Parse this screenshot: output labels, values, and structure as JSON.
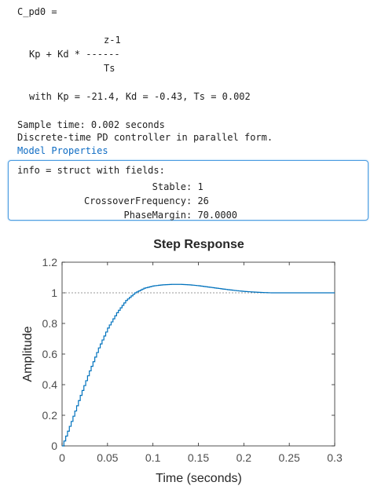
{
  "output": {
    "var_line": "C_pd0 =",
    "formula_num": "z-1",
    "formula_expr": "Kp + Kd * ------",
    "formula_den": "Ts",
    "params": "with Kp = -21.4, Kd = -0.43, Ts = 0.002",
    "sample_time": "Sample time: 0.002 seconds",
    "description": "Discrete-time PD controller in parallel form.",
    "model_link": "Model Properties"
  },
  "info": {
    "header": "info = struct with fields:",
    "fields": [
      {
        "name": "Stable",
        "value": "1"
      },
      {
        "name": "CrossoverFrequency",
        "value": "26"
      },
      {
        "name": "PhaseMargin",
        "value": "70.0000"
      }
    ]
  },
  "chart_data": {
    "type": "line",
    "title": "Step Response",
    "xlabel": "Time (seconds)",
    "ylabel": "Amplitude",
    "xlim": [
      0,
      0.3
    ],
    "ylim": [
      0,
      1.2
    ],
    "x_ticks": [
      "0",
      "0.05",
      "0.1",
      "0.15",
      "0.2",
      "0.25",
      "0.3"
    ],
    "y_ticks": [
      "0",
      "0.2",
      "0.4",
      "0.6",
      "0.8",
      "1",
      "1.2"
    ],
    "reference_line": 1,
    "grid": false,
    "series": [
      {
        "style": "stairs",
        "color": "#0072bd",
        "x": [
          0,
          0.01,
          0.02,
          0.03,
          0.04,
          0.05,
          0.06,
          0.07,
          0.08,
          0.09,
          0.1,
          0.11,
          0.12,
          0.13,
          0.14,
          0.15,
          0.16,
          0.17,
          0.18,
          0.19,
          0.2,
          0.21,
          0.22,
          0.23,
          0.24,
          0.25,
          0.26,
          0.27,
          0.28,
          0.29,
          0.3
        ],
        "y": [
          0,
          0.16,
          0.33,
          0.49,
          0.64,
          0.77,
          0.87,
          0.95,
          1.0,
          1.03,
          1.045,
          1.052,
          1.055,
          1.055,
          1.052,
          1.046,
          1.038,
          1.03,
          1.022,
          1.015,
          1.009,
          1.005,
          1.002,
          1.0,
          1.0,
          1.0,
          1.0,
          1.0,
          1.0,
          1.0,
          1.0
        ]
      }
    ]
  }
}
